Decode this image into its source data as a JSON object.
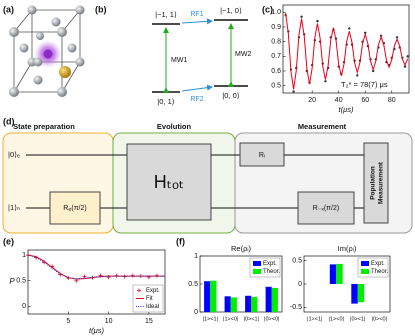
{
  "panels": {
    "a": "(a)",
    "b": "(b)",
    "c": "(c)",
    "d": "(d)",
    "e": "(e)",
    "f": "(f)"
  },
  "level_diagram": {
    "levels": [
      "|−1, 1⟩",
      "|−1, 0⟩",
      "|0, 1⟩",
      "|0, 0⟩"
    ],
    "transitions": [
      "RF1",
      "RF2",
      "MW1",
      "MW2"
    ]
  },
  "circuit": {
    "sections": [
      "State preparation",
      "Evolution",
      "Measurement"
    ],
    "inputs": [
      "|0⟩ₑ",
      "|1⟩ₙ"
    ],
    "gates": [
      "Rᵩ(π/2)",
      "Hₜₒₜ",
      "Rᵢ",
      "R₋ₓ(π/2)"
    ],
    "readout": [
      "Population",
      "Measurement"
    ]
  },
  "chart_data": [
    {
      "type": "line",
      "xlabel": "t(μs)",
      "annotation": "T₂* = 78(7) μs",
      "x": [
        0,
        2,
        4,
        6,
        8,
        10,
        12,
        14,
        16,
        18,
        20,
        22,
        24,
        26,
        28,
        30,
        32,
        34,
        36,
        38,
        40,
        42,
        44,
        46,
        48,
        50,
        52,
        54,
        56,
        58,
        60,
        62,
        64,
        66,
        68,
        70,
        72,
        74,
        76,
        78,
        80,
        82,
        84,
        86,
        88,
        90,
        92
      ],
      "series": [
        {
          "color": "#333333",
          "style": "points",
          "marker": "circle",
          "values": [
            0.98,
            0.87,
            0.61,
            0.46,
            0.62,
            0.83,
            0.97,
            0.85,
            0.6,
            0.52,
            0.64,
            0.81,
            0.94,
            0.8,
            0.65,
            0.53,
            0.62,
            0.83,
            0.88,
            0.82,
            0.63,
            0.58,
            0.66,
            0.78,
            0.89,
            0.78,
            0.67,
            0.57,
            0.67,
            0.8,
            0.86,
            0.77,
            0.68,
            0.6,
            0.68,
            0.76,
            0.84,
            0.79,
            0.66,
            0.64,
            0.69,
            0.75,
            0.83,
            0.76,
            0.69,
            0.63,
            0.7
          ]
        },
        {
          "color": "#e8001c",
          "style": "line",
          "values": [
            0.995,
            0.857,
            0.597,
            0.475,
            0.603,
            0.844,
            0.957,
            0.838,
            0.615,
            0.511,
            0.621,
            0.827,
            0.924,
            0.822,
            0.631,
            0.541,
            0.635,
            0.812,
            0.895,
            0.808,
            0.644,
            0.567,
            0.648,
            0.8,
            0.871,
            0.796,
            0.656,
            0.59,
            0.659,
            0.789,
            0.85,
            0.786,
            0.666,
            0.609,
            0.669,
            0.78,
            0.832,
            0.777,
            0.674,
            0.626,
            0.677,
            0.772,
            0.817,
            0.77,
            0.681,
            0.64,
            0.683
          ]
        }
      ],
      "xlim": [
        -2,
        93
      ],
      "xticks": [
        20,
        40,
        60,
        80
      ],
      "ylim": [
        0.45,
        1.05
      ],
      "yticks": [
        0.5,
        0.6,
        0.7,
        0.8,
        0.9,
        {
          "value": 1,
          "label": "1.0"
        }
      ]
    },
    {
      "type": "line",
      "xlabel": "t(μs)",
      "ylabel": "P",
      "legend": "lower right",
      "x": [
        0,
        1,
        2,
        3,
        4,
        5,
        6,
        7,
        8,
        9,
        10,
        11,
        12,
        13,
        14,
        15,
        16,
        17
      ],
      "series": [
        {
          "name": "Expt.",
          "color": "#e8001c",
          "style": "points",
          "marker": "plus",
          "x": [
            0,
            1,
            2,
            3,
            4,
            5,
            6,
            7,
            8,
            9,
            10,
            11,
            12,
            13,
            14,
            15,
            16
          ],
          "values": [
            1.0,
            0.95,
            0.86,
            0.78,
            0.62,
            0.55,
            0.5,
            0.58,
            0.56,
            0.6,
            0.57,
            0.6,
            0.58,
            0.6,
            0.59,
            0.57,
            0.6
          ]
        },
        {
          "name": "Fit",
          "color": "#e8001c",
          "style": "line",
          "values": [
            1.0,
            0.97,
            0.88,
            0.76,
            0.64,
            0.56,
            0.53,
            0.54,
            0.56,
            0.58,
            0.59,
            0.59,
            0.59,
            0.59,
            0.59,
            0.59,
            0.59,
            0.59
          ]
        },
        {
          "name": "Ideal",
          "color": "#1f3fd6",
          "style": "line",
          "dash": "dotted",
          "values": [
            1.0,
            0.96,
            0.86,
            0.74,
            0.63,
            0.56,
            0.54,
            0.55,
            0.57,
            0.58,
            0.59,
            0.59,
            0.59,
            0.59,
            0.59,
            0.59,
            0.59,
            0.59
          ]
        }
      ],
      "xlim": [
        0,
        17
      ],
      "xticks": [
        5,
        10,
        15
      ],
      "ylim": [
        -0.15,
        1.1
      ],
      "yticks": [
        0,
        0.5,
        1
      ]
    },
    {
      "type": "bar",
      "title": "Re(ρᵢ)",
      "legend": "upper right",
      "categories": [
        "|1><1|",
        "|1><0|",
        "|0><1|",
        "|0><0|"
      ],
      "series": [
        {
          "name": "Expt.",
          "color": "#0000ff",
          "values": [
            0.55,
            0.28,
            0.29,
            0.45
          ]
        },
        {
          "name": "Theor.",
          "color": "#00ee00",
          "values": [
            0.56,
            0.26,
            0.27,
            0.43
          ]
        }
      ],
      "ylim": [
        0,
        1
      ],
      "yticks": [
        0,
        0.5,
        1
      ]
    },
    {
      "type": "bar",
      "title": "Im(ρᵢ)",
      "legend": "upper right",
      "categories": [
        "|1><1|",
        "|1><0|",
        "|0><1|",
        "|0><0|"
      ],
      "series": [
        {
          "name": "Expt.",
          "color": "#0000ff",
          "values": [
            0,
            0.42,
            -0.42,
            0
          ]
        },
        {
          "name": "Theor.",
          "color": "#00ee00",
          "values": [
            0,
            0.43,
            -0.39,
            0
          ]
        }
      ],
      "ylim": [
        -0.6,
        0.6
      ],
      "yticks": [
        -0.5,
        0,
        0.5
      ]
    }
  ]
}
